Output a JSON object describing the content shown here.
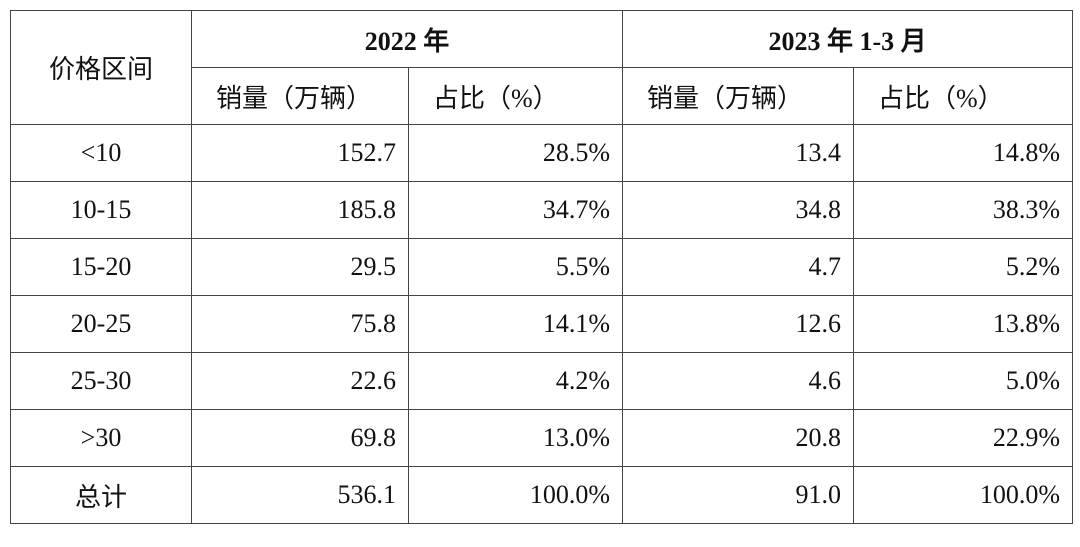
{
  "header": {
    "group_label": "价格区间",
    "years": [
      "2022 年",
      "2023 年 1-3 月"
    ],
    "columns": [
      "销量（万辆）",
      "占比（%）",
      "销量（万辆）",
      "占比（%）"
    ]
  },
  "table": {
    "rows": [
      [
        "<10",
        "152.7",
        "28.5%",
        "13.4",
        "14.8%"
      ],
      [
        "10-15",
        "185.8",
        "34.7%",
        "34.8",
        "38.3%"
      ],
      [
        "15-20",
        "29.5",
        "5.5%",
        "4.7",
        "5.2%"
      ],
      [
        "20-25",
        "75.8",
        "14.1%",
        "12.6",
        "13.8%"
      ],
      [
        "25-30",
        "22.6",
        "4.2%",
        "4.6",
        "5.0%"
      ],
      [
        ">30",
        "69.8",
        "13.0%",
        "20.8",
        "22.9%"
      ],
      [
        "总计",
        "536.1",
        "100.0%",
        "91.0",
        "100.0%"
      ]
    ]
  }
}
